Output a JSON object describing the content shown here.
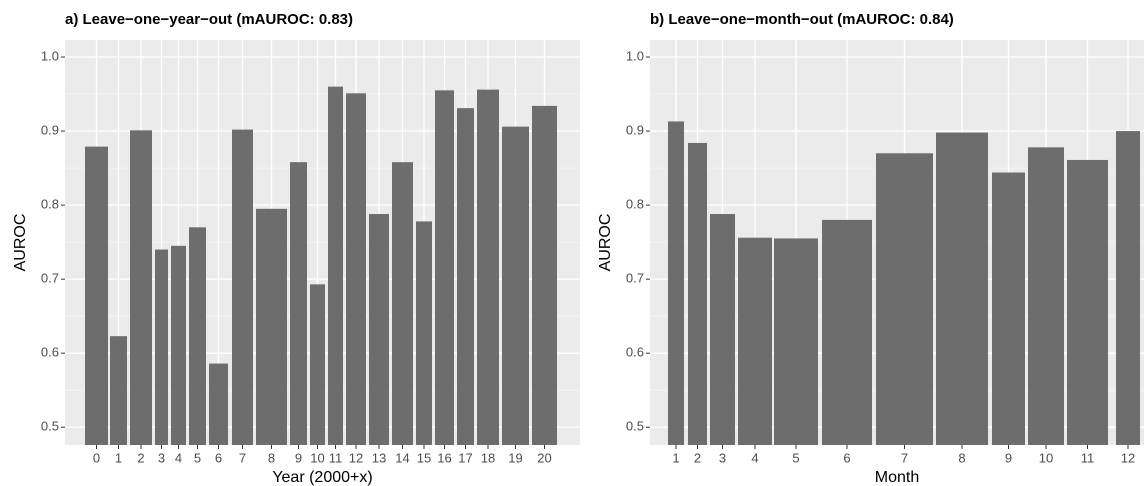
{
  "chart_data": [
    {
      "type": "bar",
      "title": "a) Leave−one−year−out (mAUROC: 0.83)",
      "x_label": "Year (2000+x)",
      "y_label": "AUROC",
      "categories": [
        "0",
        "1",
        "2",
        "3",
        "4",
        "5",
        "6",
        "7",
        "8",
        "9",
        "10",
        "11",
        "12",
        "13",
        "14",
        "15",
        "16",
        "17",
        "18",
        "19",
        "20"
      ],
      "values": [
        0.879,
        0.623,
        0.901,
        0.74,
        0.745,
        0.77,
        0.586,
        0.902,
        0.795,
        0.858,
        0.693,
        0.96,
        0.951,
        0.788,
        0.858,
        0.778,
        0.955,
        0.931,
        0.956,
        0.906,
        0.934
      ],
      "color": "#6d6d6d",
      "ylim": [
        0.476,
        1.023
      ],
      "yticks": [
        0.5,
        0.6,
        0.7,
        0.8,
        0.9,
        {
          "value": 1,
          "label": "1.0"
        }
      ],
      "grid": true
    },
    {
      "type": "bar",
      "title": "b) Leave−one−month−out (mAUROC: 0.84)",
      "x_label": "Month",
      "y_label": "AUROC",
      "categories": [
        "1",
        "2",
        "3",
        "4",
        "5",
        "6",
        "7",
        "8",
        "9",
        "10",
        "11",
        "12"
      ],
      "values": [
        0.913,
        0.884,
        0.788,
        0.756,
        0.755,
        0.78,
        0.87,
        0.898,
        0.844,
        0.878,
        0.861,
        0.9
      ],
      "color": "#6d6d6d",
      "ylim": [
        0.476,
        1.023
      ],
      "yticks": [
        0.5,
        0.6,
        0.7,
        0.8,
        0.9,
        {
          "value": 1,
          "label": "1.0"
        }
      ],
      "grid": true
    }
  ]
}
